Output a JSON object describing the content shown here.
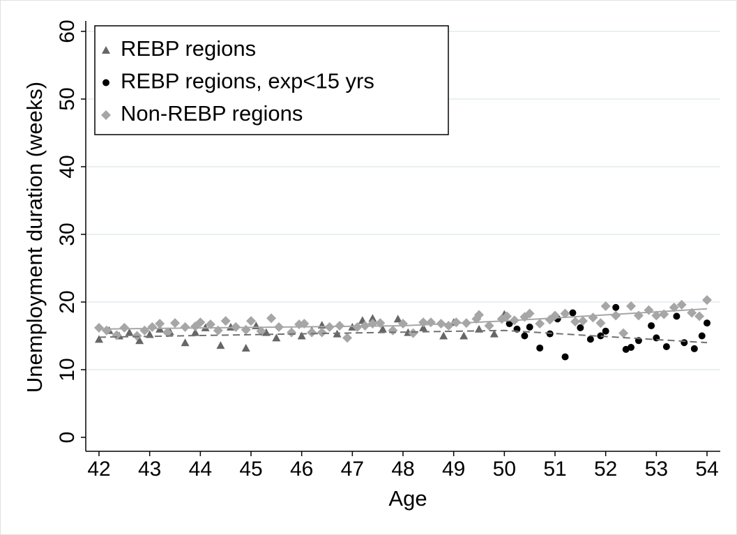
{
  "chart_data": {
    "type": "scatter",
    "x_label": "Age",
    "y_label": "Unemployment duration (weeks)",
    "xlim": [
      42,
      54
    ],
    "xticks": [
      42,
      43,
      44,
      45,
      46,
      47,
      48,
      49,
      50,
      51,
      52,
      53,
      54
    ],
    "ylim": [
      0,
      60
    ],
    "yticks": [
      0,
      10,
      20,
      30,
      40,
      50,
      60
    ],
    "grid": true,
    "legend_position": "top-left",
    "series": [
      {
        "name": "REBP regions",
        "color": "#666666",
        "marker": "triangle",
        "x": [
          42,
          42.2,
          42.4,
          42.6,
          42.8,
          43,
          43.2,
          43.4,
          43.7,
          43.9,
          44.1,
          44.4,
          44.6,
          44.9,
          45.1,
          45.3,
          45.5,
          45.8,
          46,
          46.2,
          46.4,
          46.7,
          47,
          47.2,
          47.4,
          47.6,
          47.9,
          48.1,
          48.4,
          48.8,
          49,
          49.2,
          49.5,
          49.8,
          50
        ],
        "values": [
          14.5,
          15.8,
          15,
          15.5,
          14.3,
          15.2,
          16,
          15.6,
          14,
          15.5,
          16.2,
          13.6,
          16.3,
          13.2,
          16.5,
          15.5,
          14.7,
          15.7,
          15,
          15.8,
          16.6,
          15.3,
          16.3,
          17.3,
          17.6,
          16,
          17.5,
          15.5,
          16.2,
          15,
          17,
          15,
          16,
          15.3,
          18.2
        ]
      },
      {
        "name": "REBP regions, exp<15 yrs",
        "color": "#000000",
        "marker": "circle",
        "x": [
          50.1,
          50.25,
          50.4,
          50.5,
          50.7,
          50.9,
          51.05,
          51.2,
          51.35,
          51.5,
          51.7,
          51.9,
          52,
          52.2,
          52.4,
          52.5,
          52.65,
          52.9,
          53,
          53.2,
          53.4,
          53.55,
          53.75,
          53.9,
          54
        ],
        "values": [
          16.8,
          16,
          15,
          16.3,
          13.2,
          15.3,
          17.5,
          11.9,
          18.4,
          16.2,
          14.5,
          15,
          15.7,
          19.2,
          13,
          13.3,
          14.3,
          16.5,
          14.7,
          13.4,
          17.9,
          14,
          13.1,
          15,
          16.9
        ]
      },
      {
        "name": "Non-REBP regions",
        "color": "#a6a6a6",
        "marker": "diamond",
        "x": [
          42,
          42.15,
          42.35,
          42.5,
          42.75,
          42.9,
          43.05,
          43.2,
          43.35,
          43.5,
          43.7,
          43.9,
          44,
          44.2,
          44.35,
          44.5,
          44.7,
          44.9,
          45,
          45.2,
          45.4,
          45.55,
          45.8,
          45.95,
          46.05,
          46.2,
          46.4,
          46.55,
          46.75,
          46.9,
          47.1,
          47.25,
          47.4,
          47.55,
          47.8,
          48,
          48.2,
          48.4,
          48.55,
          48.75,
          48.9,
          49.05,
          49.25,
          49.45,
          49.5,
          49.7,
          49.95,
          50.05,
          50.2,
          50.4,
          50.5,
          50.7,
          50.9,
          51,
          51.2,
          51.4,
          51.55,
          51.75,
          51.9,
          52,
          52.2,
          52.35,
          52.5,
          52.65,
          52.85,
          53,
          53.15,
          53.35,
          53.5,
          53.7,
          53.85,
          54
        ],
        "values": [
          16.2,
          15.8,
          15.1,
          16.2,
          15,
          15.8,
          16.3,
          16.8,
          15.5,
          16.9,
          16.3,
          16.4,
          17,
          16.7,
          15.8,
          17.2,
          16.3,
          15.9,
          17.2,
          15.7,
          17.6,
          16.3,
          15.5,
          16.7,
          16.8,
          15.5,
          15.5,
          16.3,
          16.5,
          14.7,
          16.3,
          16.5,
          16.8,
          16.9,
          15.8,
          16.8,
          15.4,
          17,
          17,
          16.8,
          16.5,
          17,
          16.9,
          17.5,
          18.1,
          16.5,
          17.5,
          17.9,
          17.3,
          17.8,
          18.3,
          16.8,
          17.4,
          18,
          18.3,
          17.1,
          17.2,
          17.7,
          16.9,
          19.4,
          18,
          15.4,
          19.4,
          18,
          18.8,
          18,
          18.2,
          19.2,
          19.6,
          18.4,
          17.9,
          20.3
        ]
      },
      {
        "color": "#a6a6a6",
        "marker": "line",
        "x": [
          42,
          48,
          50,
          54
        ],
        "values": [
          16,
          16.5,
          17.2,
          19
        ]
      },
      {
        "color": "#707070",
        "marker": "line",
        "dash": true,
        "x": [
          42,
          50,
          54
        ],
        "values": [
          14.8,
          15.8,
          14
        ]
      }
    ]
  }
}
